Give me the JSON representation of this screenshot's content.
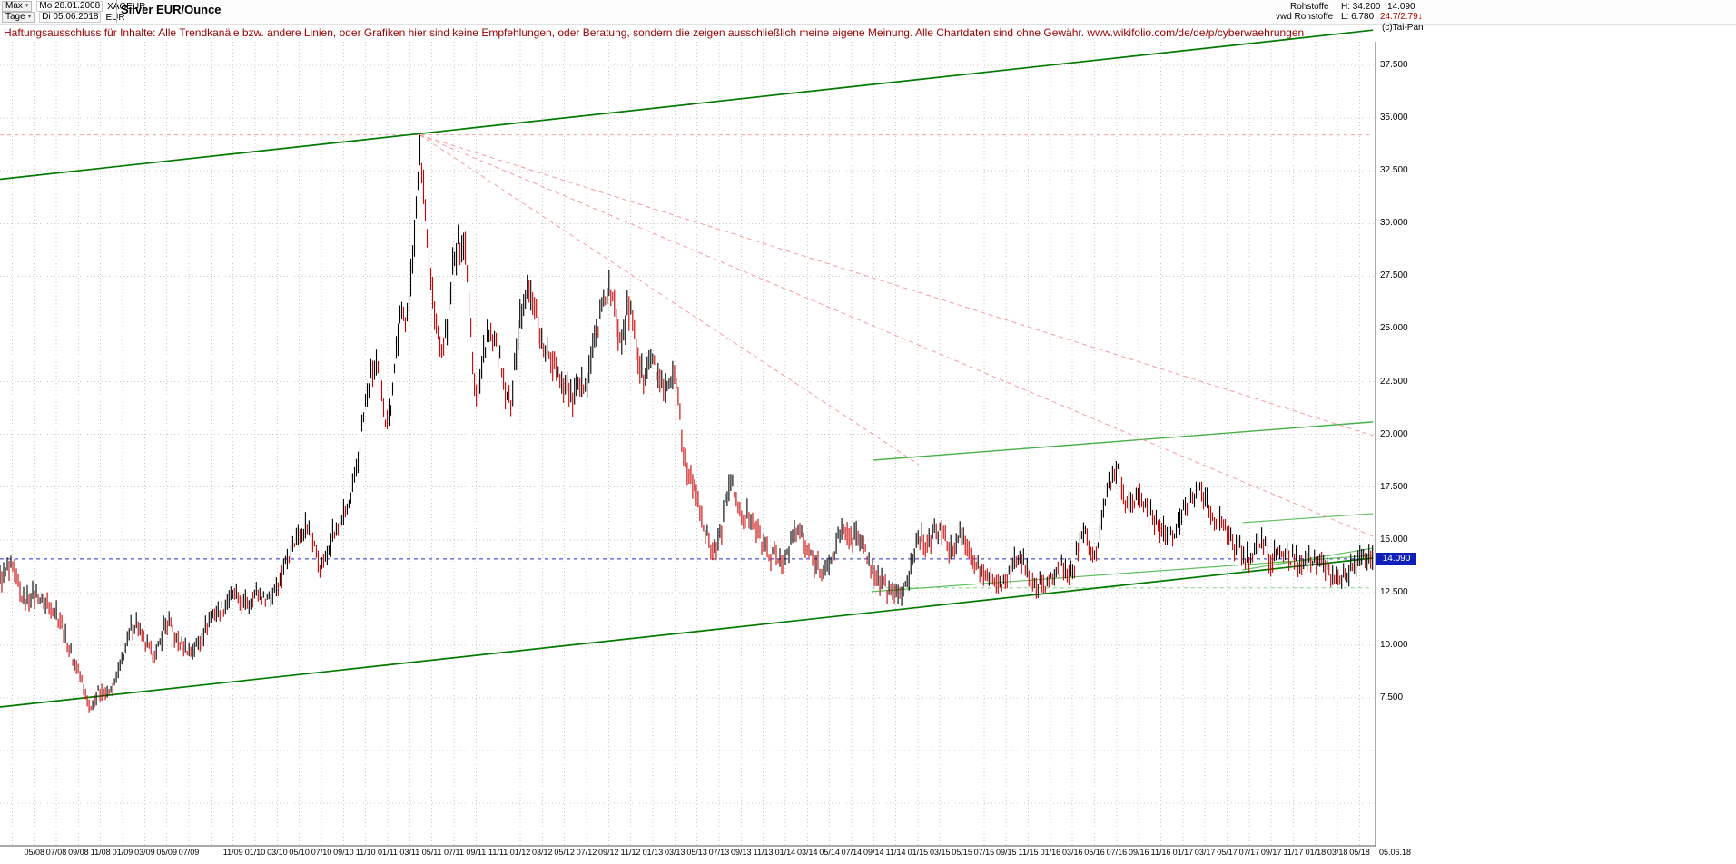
{
  "toolbar": {
    "range_label": "Max",
    "period_label": "Tage",
    "date_from": "Mo 28.01.2008",
    "date_to": "Di 05.06.2018",
    "symbol": "XAGEUR",
    "currency": "EUR",
    "title": "Silver EUR/Ounce"
  },
  "quote": {
    "category": "Rohstoffe",
    "source": "vwd Rohstoffe",
    "high": "H: 34.200",
    "low": "L: 6.780",
    "last": "14.090",
    "change": "24.7/2.79↓",
    "copyright": "(c)Tai-Pan"
  },
  "disclaimer": "Haftungsausschluss für Inhalte: Alle Trendkanäle bzw. andere Linien, oder Grafiken hier sind keine Empfehlungen, oder Beratung, sondern die zeigen ausschließlich meine eigene Meinung. Alle Chartdaten sind ohne Gewähr.  www.wikifolio.com/de/de/p/cyberwaehrungen",
  "chart_data": {
    "type": "candlestick",
    "title": "Silver EUR/Ounce",
    "instrument": "XAGEUR",
    "currency": "EUR",
    "high": 34.2,
    "low": 6.78,
    "last": 14.09,
    "last_label": "14.090",
    "y_axis": {
      "ticks": [
        {
          "value": 37.5,
          "label": "37.500"
        },
        {
          "value": 35.0,
          "label": "35.000"
        },
        {
          "value": 32.5,
          "label": "32.500"
        },
        {
          "value": 30.0,
          "label": "30.000"
        },
        {
          "value": 27.5,
          "label": "27.500"
        },
        {
          "value": 25.0,
          "label": "25.000"
        },
        {
          "value": 22.5,
          "label": "22.500"
        },
        {
          "value": 20.0,
          "label": "20.000"
        },
        {
          "value": 17.5,
          "label": "17.500"
        },
        {
          "value": 15.0,
          "label": "15.000"
        },
        {
          "value": 12.5,
          "label": "12.500"
        },
        {
          "value": 10.0,
          "label": "10.000"
        },
        {
          "value": 7.5,
          "label": "7.500"
        }
      ],
      "unlabeled_grid": [
        5.0,
        2.5
      ]
    },
    "x_axis": {
      "grid_step_months": 2,
      "end_label": "05.06.18",
      "ticks": [
        {
          "m": 4,
          "label": "05/08"
        },
        {
          "m": 6,
          "label": "07/08"
        },
        {
          "m": 8,
          "label": "09/08"
        },
        {
          "m": 10,
          "label": "11/08"
        },
        {
          "m": 12,
          "label": "01/09"
        },
        {
          "m": 14,
          "label": "03/09"
        },
        {
          "m": 16,
          "label": "05/09"
        },
        {
          "m": 18,
          "label": "07/09"
        },
        {
          "m": 22,
          "label": "11/09"
        },
        {
          "m": 24,
          "label": "01/10"
        },
        {
          "m": 26,
          "label": "03/10"
        },
        {
          "m": 28,
          "label": "05/10"
        },
        {
          "m": 30,
          "label": "07/10"
        },
        {
          "m": 32,
          "label": "09/10"
        },
        {
          "m": 34,
          "label": "11/10"
        },
        {
          "m": 36,
          "label": "01/11"
        },
        {
          "m": 38,
          "label": "03/11"
        },
        {
          "m": 40,
          "label": "05/11"
        },
        {
          "m": 42,
          "label": "07/11"
        },
        {
          "m": 44,
          "label": "09/11"
        },
        {
          "m": 46,
          "label": "11/11"
        },
        {
          "m": 48,
          "label": "01/12"
        },
        {
          "m": 50,
          "label": "03/12"
        },
        {
          "m": 52,
          "label": "05/12"
        },
        {
          "m": 54,
          "label": "07/12"
        },
        {
          "m": 56,
          "label": "09/12"
        },
        {
          "m": 58,
          "label": "11/12"
        },
        {
          "m": 60,
          "label": "01/13"
        },
        {
          "m": 62,
          "label": "03/13"
        },
        {
          "m": 64,
          "label": "05/13"
        },
        {
          "m": 66,
          "label": "07/13"
        },
        {
          "m": 68,
          "label": "09/13"
        },
        {
          "m": 70,
          "label": "11/13"
        },
        {
          "m": 72,
          "label": "01/14"
        },
        {
          "m": 74,
          "label": "03/14"
        },
        {
          "m": 76,
          "label": "05/14"
        },
        {
          "m": 78,
          "label": "07/14"
        },
        {
          "m": 80,
          "label": "09/14"
        },
        {
          "m": 82,
          "label": "11/14"
        },
        {
          "m": 84,
          "label": "01/15"
        },
        {
          "m": 86,
          "label": "03/15"
        },
        {
          "m": 88,
          "label": "05/15"
        },
        {
          "m": 90,
          "label": "07/15"
        },
        {
          "m": 92,
          "label": "09/15"
        },
        {
          "m": 94,
          "label": "11/15"
        },
        {
          "m": 96,
          "label": "01/16"
        },
        {
          "m": 98,
          "label": "03/16"
        },
        {
          "m": 100,
          "label": "05/16"
        },
        {
          "m": 102,
          "label": "07/16"
        },
        {
          "m": 104,
          "label": "09/16"
        },
        {
          "m": 106,
          "label": "11/16"
        },
        {
          "m": 108,
          "label": "01/17"
        },
        {
          "m": 110,
          "label": "03/17"
        },
        {
          "m": 112,
          "label": "05/17"
        },
        {
          "m": 114,
          "label": "07/17"
        },
        {
          "m": 116,
          "label": "09/17"
        },
        {
          "m": 118,
          "label": "11/17"
        },
        {
          "m": 120,
          "label": "01/18"
        },
        {
          "m": 122,
          "label": "03/18"
        },
        {
          "m": 124,
          "label": "05/18"
        }
      ]
    },
    "monthly_closes": {
      "start": "2008-01",
      "end": "2018-06",
      "values": [
        13.8,
        13.2,
        13.6,
        12.2,
        12.4,
        12.0,
        11.6,
        10.0,
        8.8,
        7.2,
        7.9,
        7.8,
        9.5,
        11.0,
        10.2,
        9.6,
        11.1,
        10.2,
        9.8,
        10.3,
        11.3,
        11.7,
        12.3,
        11.9,
        12.4,
        12.2,
        12.9,
        14.2,
        15.3,
        15.4,
        13.8,
        15.2,
        16.1,
        17.6,
        21.5,
        23.1,
        20.7,
        24.9,
        26.6,
        32.7,
        26.9,
        24.1,
        28.0,
        28.9,
        22.2,
        24.6,
        23.7,
        21.5,
        25.5,
        26.5,
        24.2,
        23.5,
        22.3,
        21.8,
        22.8,
        25.1,
        26.8,
        24.9,
        25.7,
        22.9,
        23.3,
        21.9,
        22.4,
        18.5,
        17.1,
        15.0,
        14.9,
        17.8,
        16.1,
        16.1,
        14.7,
        14.2,
        14.1,
        15.4,
        14.4,
        13.8,
        13.7,
        15.4,
        15.2,
        14.8,
        13.5,
        12.8,
        12.4,
        12.9,
        15.2,
        14.8,
        15.5,
        14.4,
        15.2,
        14.0,
        13.4,
        13.0,
        13.0,
        14.1,
        13.4,
        12.7,
        13.1,
        13.6,
        13.6,
        15.6,
        14.3,
        16.8,
        18.4,
        16.7,
        17.1,
        16.2,
        15.6,
        15.1,
        16.3,
        17.3,
        17.0,
        15.9,
        15.5,
        14.6,
        14.2,
        14.9,
        14.1,
        14.4,
        14.0,
        14.1,
        13.9,
        13.6,
        13.2,
        13.5,
        14.0,
        14.09
      ]
    },
    "trend_lines": [
      {
        "name": "channel-top",
        "color": "#007a00",
        "width": 1.7,
        "dash": null,
        "m1": 0.9,
        "p1": 32.1,
        "m2": 125.2,
        "p2": 39.17
      },
      {
        "name": "channel-bottom",
        "color": "#007a00",
        "width": 1.7,
        "dash": null,
        "m1": 0.9,
        "p1": 7.07,
        "m2": 125.2,
        "p2": 14.13
      },
      {
        "name": "resistance-mid",
        "color": "#45b045",
        "width": 1.4,
        "dash": null,
        "m1": 80.0,
        "p1": 18.78,
        "m2": 125.2,
        "p2": 20.59
      },
      {
        "name": "support-rising-long",
        "color": "#5fbf5f",
        "width": 1.2,
        "dash": null,
        "m1": 79.8,
        "p1": 12.54,
        "m2": 125.2,
        "p2": 14.26
      },
      {
        "name": "support-rising-short",
        "color": "#5fbf5f",
        "width": 1.2,
        "dash": null,
        "m1": 113.4,
        "p1": 13.57,
        "m2": 125.2,
        "p2": 14.6
      },
      {
        "name": "resistance-short",
        "color": "#5fbf5f",
        "width": 1.2,
        "dash": null,
        "m1": 113.4,
        "p1": 15.81,
        "m2": 125.2,
        "p2": 16.24
      },
      {
        "name": "fan-steep",
        "color": "#f79b9b",
        "width": 1,
        "dash": "5 4",
        "m1": 38.9,
        "p1": 34.2,
        "m2": 84.1,
        "p2": 18.56
      },
      {
        "name": "fan-mid",
        "color": "#f79b9b",
        "width": 1,
        "dash": "5 4",
        "m1": 38.9,
        "p1": 34.2,
        "m2": 125.2,
        "p2": 15.16
      },
      {
        "name": "fan-shallow",
        "color": "#f79b9b",
        "width": 1,
        "dash": "5 4",
        "m1": 38.9,
        "p1": 34.2,
        "m2": 125.2,
        "p2": 19.94
      }
    ],
    "h_lines": [
      {
        "name": "high-line",
        "price": 34.2,
        "color": "#f4a0a0",
        "dash": "4 4",
        "m1": 0.9,
        "m2": 125.2
      },
      {
        "name": "last-price-line",
        "price": 14.09,
        "color": "#2929c8",
        "dash": "4 4",
        "m1": 0.9,
        "m2": 125.2
      },
      {
        "name": "support-level",
        "price": 12.72,
        "color": "#7fd87f",
        "dash": "4 4",
        "m1": 79.8,
        "m2": 125.2
      }
    ],
    "colors": {
      "up": "#000000",
      "down": "#cc0000",
      "grid": "#c9c9c9",
      "price_tag_bg": "#0f1fba"
    }
  }
}
